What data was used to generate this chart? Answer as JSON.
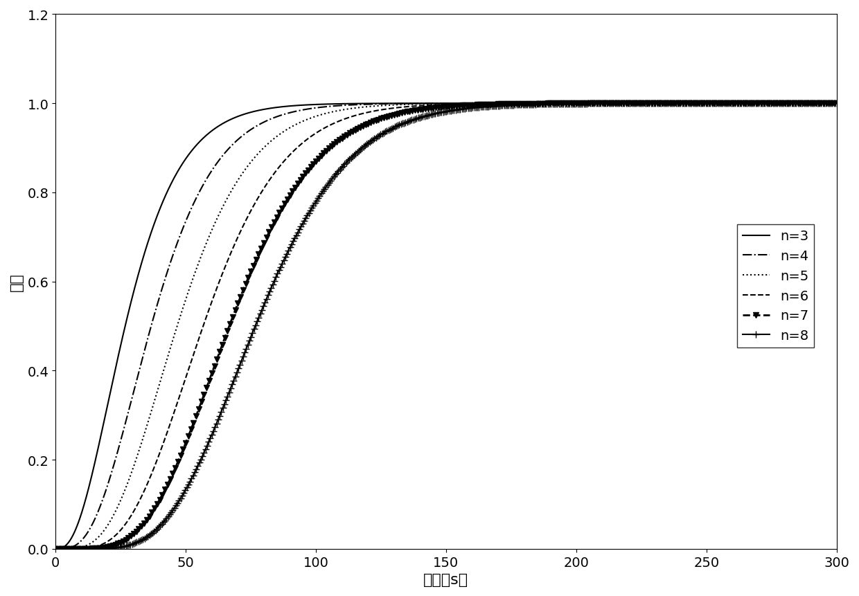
{
  "title": "",
  "xlabel": "时间（s）",
  "ylabel": "振幅",
  "xlim": [
    0,
    300
  ],
  "ylim": [
    0,
    1.2
  ],
  "xticks": [
    0,
    50,
    100,
    150,
    200,
    250,
    300
  ],
  "yticks": [
    0.0,
    0.2,
    0.4,
    0.6,
    0.8,
    1.0,
    1.2
  ],
  "T": 10,
  "n_values": [
    3,
    4,
    5,
    6,
    7,
    8
  ],
  "line_styles": [
    "-",
    "-.",
    ":",
    "--",
    "--",
    "-"
  ],
  "line_widths": [
    1.5,
    1.5,
    1.5,
    1.5,
    2.0,
    1.5
  ],
  "markers": [
    null,
    null,
    null,
    null,
    "v",
    "+"
  ],
  "marker_sizes": [
    0,
    0,
    0,
    0,
    6,
    7
  ],
  "marker_every": [
    null,
    null,
    null,
    null,
    10,
    6
  ],
  "legend_labels": [
    "n=3",
    "n=4",
    "n=5",
    "n=6",
    "n=7",
    "n=8"
  ],
  "line_color": "black",
  "background_color": "white",
  "font_size": 16,
  "tick_font_size": 14,
  "legend_font_size": 14
}
